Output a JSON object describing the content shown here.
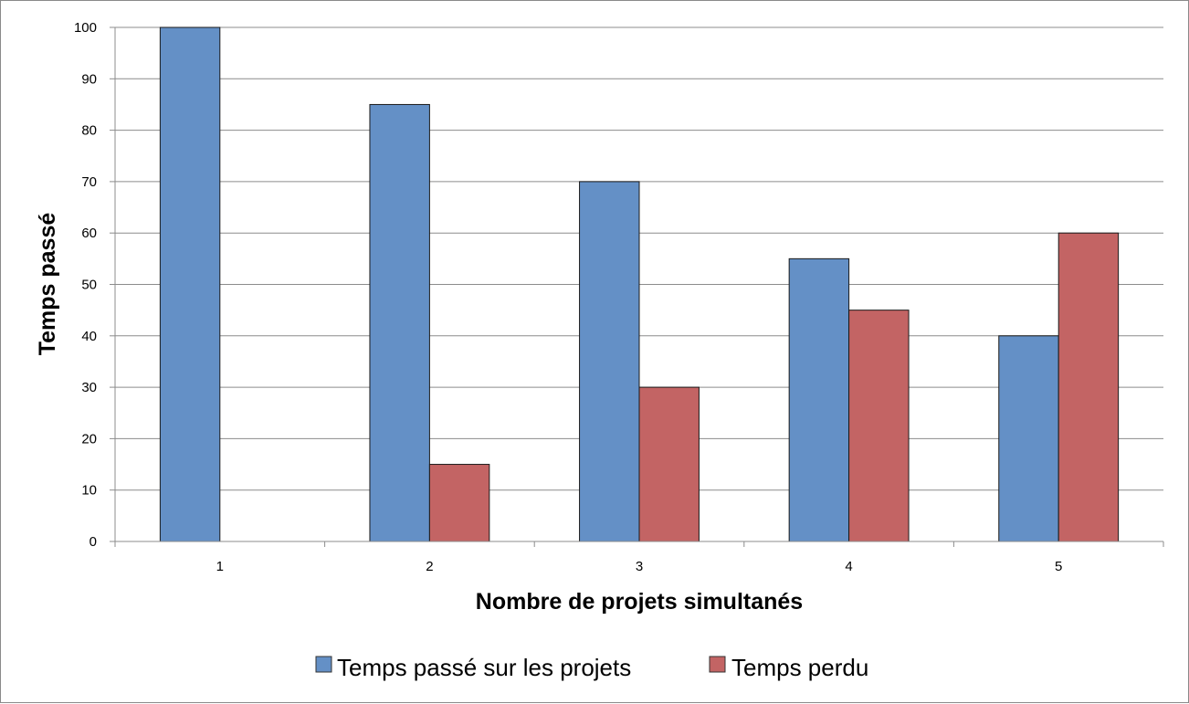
{
  "chart_data": {
    "type": "bar",
    "title": "",
    "xlabel": "Nombre de projets simultanés",
    "ylabel": "Temps passé",
    "categories": [
      "1",
      "2",
      "3",
      "4",
      "5"
    ],
    "series": [
      {
        "name": "Temps passé sur les projets",
        "color": "#6490c6",
        "values": [
          100,
          85,
          70,
          55,
          40
        ]
      },
      {
        "name": "Temps perdu",
        "color": "#c36464",
        "values": [
          0,
          15,
          30,
          45,
          60
        ]
      }
    ],
    "ylim": [
      0,
      100
    ],
    "yticks": [
      "0",
      "10",
      "20",
      "30",
      "40",
      "50",
      "60",
      "70",
      "80",
      "90",
      "100"
    ],
    "grid": true,
    "legend_position": "bottom"
  }
}
